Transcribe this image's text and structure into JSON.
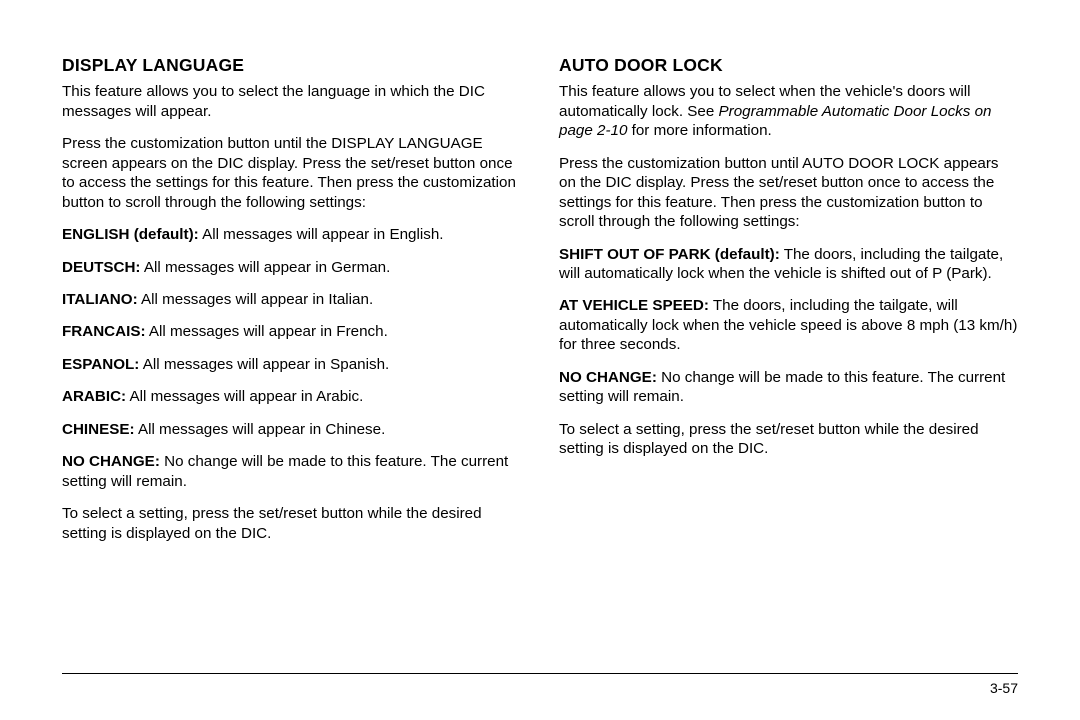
{
  "left": {
    "heading": "DISPLAY LANGUAGE",
    "intro": "This feature allows you to select the language in which the DIC messages will appear.",
    "instructions": "Press the customization button until the DISPLAY LANGUAGE screen appears on the DIC display. Press the set/reset button once to access the settings for this feature. Then press the customization button to scroll through the following settings:",
    "settings": [
      {
        "label": "ENGLISH (default):",
        "desc": " All messages will appear in English."
      },
      {
        "label": "DEUTSCH:",
        "desc": " All messages will appear in German."
      },
      {
        "label": "ITALIANO:",
        "desc": " All messages will appear in Italian."
      },
      {
        "label": "FRANCAIS:",
        "desc": " All messages will appear in French."
      },
      {
        "label": "ESPANOL:",
        "desc": " All messages will appear in Spanish."
      },
      {
        "label": "ARABIC:",
        "desc": " All messages will appear in Arabic."
      },
      {
        "label": "CHINESE:",
        "desc": " All messages will appear in Chinese."
      },
      {
        "label": "NO CHANGE:",
        "desc": " No change will be made to this feature. The current setting will remain."
      }
    ],
    "closing": "To select a setting, press the set/reset button while the desired setting is displayed on the DIC."
  },
  "right": {
    "heading": "AUTO DOOR LOCK",
    "intro_pre": "This feature allows you to select when the vehicle's doors will automatically lock. See ",
    "intro_italic": "Programmable Automatic Door Locks on page 2-10",
    "intro_post": " for more information.",
    "instructions": "Press the customization button until AUTO DOOR LOCK appears on the DIC display. Press the set/reset button once to access the settings for this feature. Then press the customization button to scroll through the following settings:",
    "settings": [
      {
        "label": "SHIFT OUT OF PARK (default):",
        "desc": " The doors, including the tailgate, will automatically lock when the vehicle is shifted out of P (Park)."
      },
      {
        "label": "AT VEHICLE SPEED:",
        "desc": " The doors, including the tailgate, will automatically lock when the vehicle speed is above 8 mph (13 km/h) for three seconds."
      },
      {
        "label": "NO CHANGE:",
        "desc": " No change will be made to this feature. The current setting will remain."
      }
    ],
    "closing": "To select a setting, press the set/reset button while the desired setting is displayed on the DIC."
  },
  "page_number": "3-57"
}
